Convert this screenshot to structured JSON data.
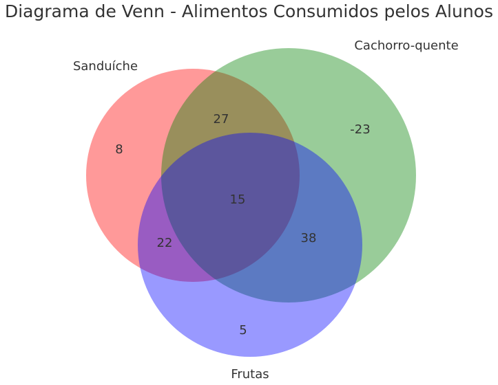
{
  "title": "Diagrama de Venn - Alimentos Consumidos pelos Alunos",
  "sets": [
    {
      "name": "Sanduíche",
      "color": "#ff0000"
    },
    {
      "name": "Cachorro-quente",
      "color": "#008000"
    },
    {
      "name": "Frutas",
      "color": "#0000ff"
    }
  ],
  "regions": {
    "only_a": "8",
    "only_b": "-23",
    "a_and_b": "27",
    "only_c": "5",
    "a_and_c": "22",
    "b_and_c": "38",
    "a_b_c": "15"
  }
}
